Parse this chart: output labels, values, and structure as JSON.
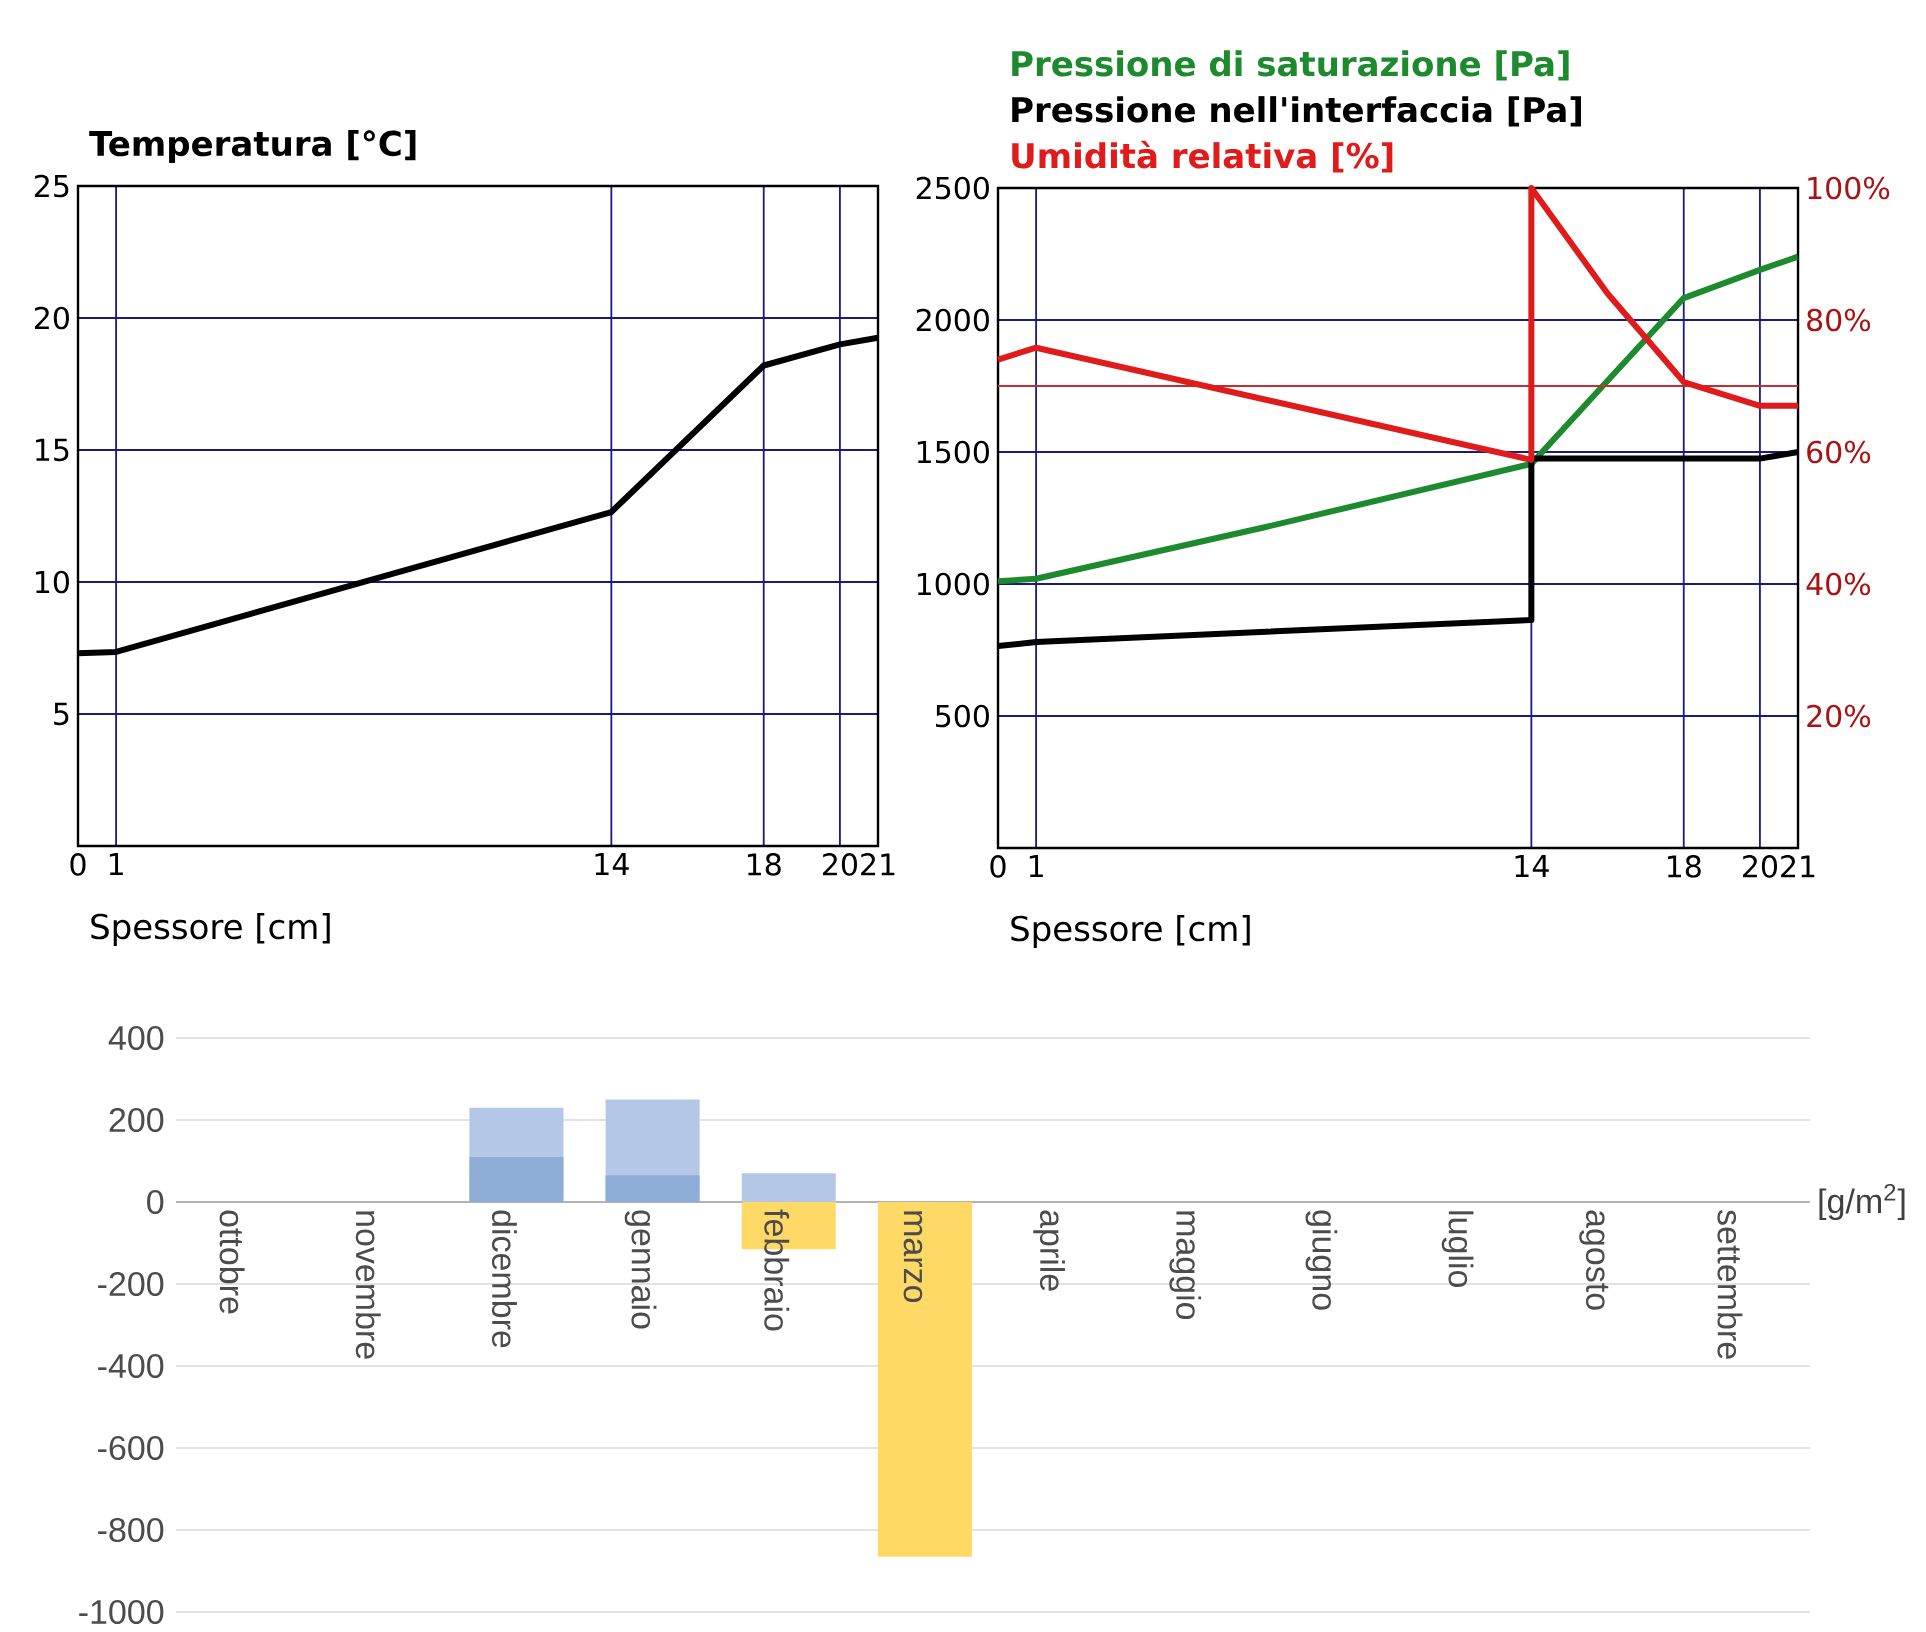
{
  "chart_data": [
    {
      "type": "line",
      "title": "Temperatura [°C]",
      "xlabel": "Spessore [cm]",
      "x": [
        0,
        1,
        14,
        18,
        20,
        21
      ],
      "series": [
        {
          "color": "#000000",
          "values": [
            7.3,
            7.35,
            12.65,
            18.2,
            19.0,
            19.25
          ]
        }
      ],
      "xlim": [
        0,
        21
      ],
      "ylim": [
        0,
        25
      ],
      "xticks": [
        0,
        1,
        14,
        18,
        20,
        21
      ],
      "yticks": [
        5,
        10,
        15,
        20,
        25
      ],
      "grid": true
    },
    {
      "type": "line",
      "xlabel": "Spessore [cm]",
      "legend": "top",
      "series": [
        {
          "name": "Pressione di saturazione [Pa]",
          "color": "#1e8a2e",
          "x": [
            0,
            1,
            7,
            14,
            16,
            18,
            20,
            21
          ],
          "values": [
            1010,
            1020,
            1215,
            1455,
            1770,
            2083,
            2190,
            2240
          ]
        },
        {
          "name": "Pressione nell'interfaccia [Pa]",
          "color": "#000000",
          "x": [
            0,
            1,
            14,
            14,
            20,
            21
          ],
          "values": [
            765,
            780,
            864,
            1475,
            1475,
            1500
          ]
        },
        {
          "name": "Umidità relativa [%]",
          "color": "#e01b1b",
          "axis": "y2",
          "x": [
            0,
            1,
            14,
            14,
            16,
            18,
            20,
            21
          ],
          "values": [
            74,
            75.8,
            58.8,
            100,
            84,
            70.6,
            67,
            67
          ]
        }
      ],
      "xlim": [
        0,
        21
      ],
      "ylim": [
        0,
        2500
      ],
      "y2lim": [
        0,
        100
      ],
      "xticks": [
        0,
        1,
        14,
        18,
        20,
        21
      ],
      "yticks": [
        500,
        1000,
        1500,
        2000,
        2500
      ],
      "y2ticks": [
        {
          "value": 20,
          "label": "20%"
        },
        {
          "value": 40,
          "label": "40%"
        },
        {
          "value": 60,
          "label": "60%"
        },
        {
          "value": 80,
          "label": "80%"
        },
        {
          "value": 100,
          "label": "100%"
        }
      ],
      "ref_lines": [
        {
          "axis": "y2",
          "value": 70,
          "color": "#c03030"
        }
      ],
      "grid": true
    },
    {
      "type": "bar",
      "ylabel": "[g/m$^{2}$]",
      "categories": [
        "ottobre",
        "novembre",
        "dicembre",
        "gennaio",
        "febbraio",
        "marzo",
        "aprile",
        "maggio",
        "giugno",
        "luglio",
        "agosto",
        "settembre"
      ],
      "series": [
        {
          "color": "#b4c7e7",
          "values": [
            null,
            null,
            230,
            250,
            70,
            null,
            null,
            null,
            null,
            null,
            null,
            null
          ]
        },
        {
          "color": "#8eaed8",
          "values": [
            null,
            null,
            110,
            65,
            null,
            null,
            null,
            null,
            null,
            null,
            null,
            null
          ]
        },
        {
          "color": "#ffd966",
          "values": [
            null,
            null,
            null,
            null,
            -115,
            -865,
            null,
            null,
            null,
            null,
            null,
            null
          ]
        }
      ],
      "ylim": [
        -1000,
        400
      ],
      "yticks": [
        -1000,
        -800,
        -600,
        -400,
        -200,
        0,
        200,
        400
      ],
      "grid": "y"
    }
  ]
}
